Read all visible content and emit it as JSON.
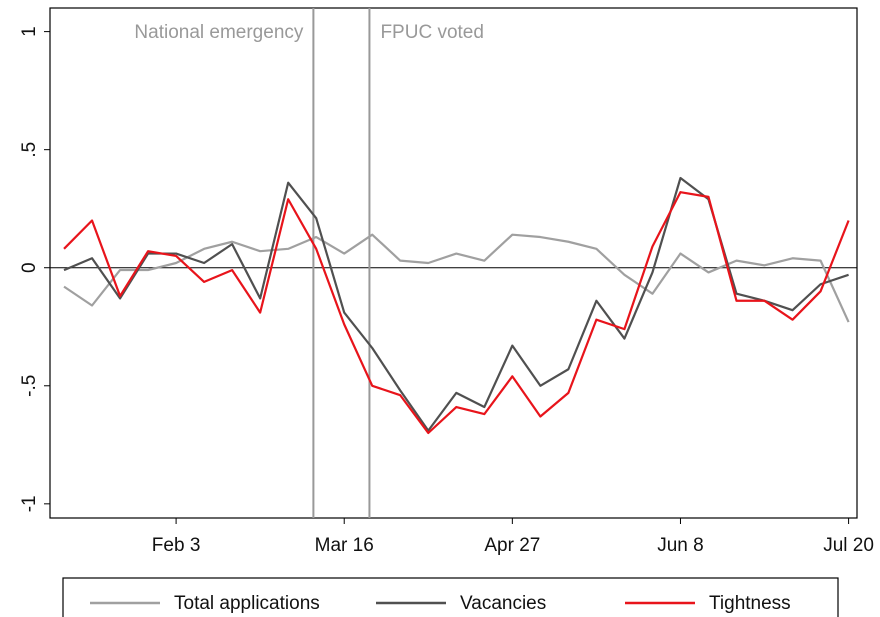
{
  "chart_data": {
    "type": "line",
    "categories": [
      null,
      null,
      null,
      null,
      "Feb 3",
      null,
      null,
      null,
      null,
      null,
      "Mar 16",
      null,
      null,
      null,
      null,
      null,
      "Apr 27",
      null,
      null,
      null,
      null,
      null,
      "Jun 8",
      null,
      null,
      null,
      null,
      null,
      "Jul 20"
    ],
    "series": [
      {
        "name": "Total applications",
        "color": "#a0a0a0",
        "values": [
          -0.08,
          -0.16,
          -0.01,
          -0.01,
          0.02,
          0.08,
          0.11,
          0.07,
          0.08,
          0.13,
          0.06,
          0.14,
          0.03,
          0.02,
          0.06,
          0.03,
          0.14,
          0.13,
          0.11,
          0.08,
          -0.03,
          -0.11,
          0.06,
          -0.02,
          0.03,
          0.01,
          0.04,
          0.03,
          -0.23
        ]
      },
      {
        "name": "Vacancies",
        "color": "#505050",
        "values": [
          -0.01,
          0.04,
          -0.13,
          0.06,
          0.06,
          0.02,
          0.1,
          -0.13,
          0.36,
          0.21,
          -0.19,
          -0.34,
          -0.52,
          -0.69,
          -0.53,
          -0.59,
          -0.33,
          -0.5,
          -0.43,
          -0.14,
          -0.3,
          -0.02,
          0.38,
          0.29,
          -0.11,
          -0.14,
          -0.18,
          -0.07,
          -0.03
        ]
      },
      {
        "name": "Tightness",
        "color": "#e8141b",
        "values": [
          0.08,
          0.2,
          -0.12,
          0.07,
          0.05,
          -0.06,
          -0.01,
          -0.19,
          0.29,
          0.08,
          -0.24,
          -0.5,
          -0.54,
          -0.7,
          -0.59,
          -0.62,
          -0.46,
          -0.63,
          -0.53,
          -0.22,
          -0.26,
          0.09,
          0.32,
          0.3,
          -0.14,
          -0.14,
          -0.22,
          -0.1,
          0.2
        ]
      }
    ],
    "annotations": [
      {
        "label": "National emergency",
        "x": 8.9
      },
      {
        "label": "FPUC voted",
        "x": 10.9
      }
    ],
    "ylim": [
      -1.06,
      1.1
    ],
    "yticks": [
      -1,
      {
        "value": -0.5,
        "label": "-.5"
      },
      0,
      {
        "value": 0.5,
        "label": ".5"
      },
      1
    ],
    "legend": "bottom"
  }
}
